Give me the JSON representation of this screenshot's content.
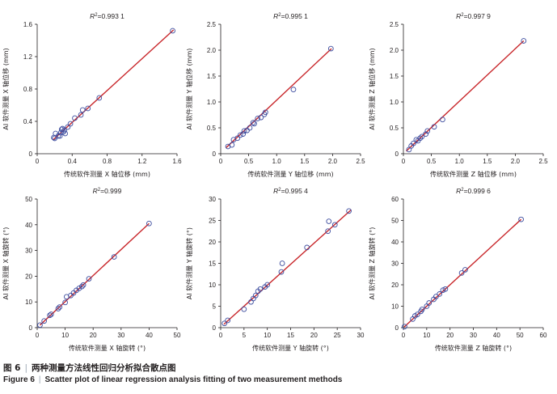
{
  "figure_label": "图 6",
  "caption_zh": "两种测量方法线性回归分析拟合散点图",
  "figure_label_en": "Figure 6",
  "caption_en": "Scatter plot of linear regression analysis fitting of two measurement methods",
  "colors": {
    "point": "#3b4b9e",
    "line": "#c8262a",
    "axis": "#231f20"
  },
  "chart_data": [
    {
      "type": "scatter",
      "r2_label": "R",
      "r2_value": "=0.993 1",
      "xlabel": "传统软件测量 X 轴位移 (mm)",
      "ylabel": "AI 软件测量 X 轴位移 (mm)",
      "xlim": [
        0,
        1.6
      ],
      "ylim": [
        0,
        1.6
      ],
      "xticks": [
        0,
        0.4,
        0.8,
        1.2,
        1.6
      ],
      "yticks": [
        0,
        0.4,
        0.8,
        1.2,
        1.6
      ],
      "xtick_labels": [
        "0",
        "0.4",
        "0.8",
        "1.2",
        "1.6"
      ],
      "ytick_labels": [
        "0",
        "0.4",
        "0.8",
        "1.2",
        "1.6"
      ],
      "fit": [
        [
          0.18,
          0.17
        ],
        [
          1.56,
          1.53
        ]
      ],
      "points": [
        [
          0.19,
          0.2
        ],
        [
          0.2,
          0.19
        ],
        [
          0.21,
          0.25
        ],
        [
          0.24,
          0.22
        ],
        [
          0.26,
          0.22
        ],
        [
          0.27,
          0.26
        ],
        [
          0.28,
          0.3
        ],
        [
          0.29,
          0.31
        ],
        [
          0.3,
          0.27
        ],
        [
          0.31,
          0.29
        ],
        [
          0.32,
          0.25
        ],
        [
          0.35,
          0.33
        ],
        [
          0.38,
          0.37
        ],
        [
          0.43,
          0.44
        ],
        [
          0.5,
          0.48
        ],
        [
          0.52,
          0.54
        ],
        [
          0.58,
          0.56
        ],
        [
          0.71,
          0.69
        ],
        [
          1.55,
          1.52
        ]
      ]
    },
    {
      "type": "scatter",
      "r2_label": "R",
      "r2_value": "=0.995 1",
      "xlabel": "传统软件测量 Y 轴位移 (mm)",
      "ylabel": "AI 软件测量 Y 轴位移 (mm)",
      "xlim": [
        0,
        2.5
      ],
      "ylim": [
        0,
        2.5
      ],
      "xticks": [
        0,
        0.5,
        1.0,
        1.5,
        2.0,
        2.5
      ],
      "yticks": [
        0,
        0.5,
        1.0,
        1.5,
        2.0,
        2.5
      ],
      "xtick_labels": [
        "0",
        "0.5",
        "1.0",
        "1.5",
        "2.0",
        "2.5"
      ],
      "ytick_labels": [
        "0",
        "0.5",
        "1.0",
        "1.5",
        "2.0",
        "2.5"
      ],
      "fit": [
        [
          0.1,
          0.12
        ],
        [
          1.98,
          2.03
        ]
      ],
      "points": [
        [
          0.13,
          0.14
        ],
        [
          0.2,
          0.17
        ],
        [
          0.23,
          0.27
        ],
        [
          0.3,
          0.3
        ],
        [
          0.35,
          0.36
        ],
        [
          0.4,
          0.38
        ],
        [
          0.42,
          0.44
        ],
        [
          0.47,
          0.45
        ],
        [
          0.52,
          0.5
        ],
        [
          0.58,
          0.6
        ],
        [
          0.6,
          0.58
        ],
        [
          0.66,
          0.68
        ],
        [
          0.72,
          0.7
        ],
        [
          0.78,
          0.76
        ],
        [
          0.8,
          0.8
        ],
        [
          1.3,
          1.24
        ],
        [
          1.97,
          2.03
        ]
      ]
    },
    {
      "type": "scatter",
      "r2_label": "R",
      "r2_value": "=0.997 9",
      "xlabel": "传统软件测量 Z 轴位移 (mm)",
      "ylabel": "AI 软件测量 Z 轴位移 (mm)",
      "xlim": [
        0,
        2.5
      ],
      "ylim": [
        0,
        2.5
      ],
      "xticks": [
        0,
        0.5,
        1.0,
        1.5,
        2.0,
        2.5
      ],
      "yticks": [
        0,
        0.5,
        1.0,
        1.5,
        2.0,
        2.5
      ],
      "xtick_labels": [
        "0",
        "0.5",
        "1.0",
        "1.5",
        "2.0",
        "2.5"
      ],
      "ytick_labels": [
        "0",
        "0.5",
        "1.0",
        "1.5",
        "2.0",
        "2.5"
      ],
      "fit": [
        [
          0.05,
          0.05
        ],
        [
          2.15,
          2.18
        ]
      ],
      "points": [
        [
          0.1,
          0.08
        ],
        [
          0.14,
          0.15
        ],
        [
          0.18,
          0.2
        ],
        [
          0.23,
          0.27
        ],
        [
          0.26,
          0.25
        ],
        [
          0.3,
          0.3
        ],
        [
          0.33,
          0.33
        ],
        [
          0.4,
          0.38
        ],
        [
          0.43,
          0.44
        ],
        [
          0.55,
          0.52
        ],
        [
          0.7,
          0.66
        ],
        [
          2.15,
          2.18
        ]
      ]
    },
    {
      "type": "scatter",
      "r2_label": "R",
      "r2_value": "=0.999",
      "xlabel": "传统软件测量 X 轴旋转 (°)",
      "ylabel": "AI 软件测量 X 轴旋转 (°)",
      "xlim": [
        0,
        50
      ],
      "ylim": [
        0,
        50
      ],
      "xticks": [
        0,
        10,
        20,
        30,
        40,
        50
      ],
      "yticks": [
        0,
        10,
        20,
        30,
        40,
        50
      ],
      "xtick_labels": [
        "0",
        "10",
        "20",
        "30",
        "40",
        "50"
      ],
      "ytick_labels": [
        "0",
        "10",
        "20",
        "30",
        "40",
        "50"
      ],
      "fit": [
        [
          1,
          1
        ],
        [
          40,
          40.5
        ]
      ],
      "points": [
        [
          1,
          1
        ],
        [
          2.5,
          2.6
        ],
        [
          4.5,
          4.8
        ],
        [
          5,
          5.2
        ],
        [
          7.5,
          7.4
        ],
        [
          8,
          8
        ],
        [
          10,
          9.8
        ],
        [
          10.5,
          12
        ],
        [
          12,
          12.5
        ],
        [
          13,
          13.5
        ],
        [
          14,
          14.5
        ],
        [
          15,
          15.3
        ],
        [
          16,
          16
        ],
        [
          16.5,
          16.6
        ],
        [
          18.5,
          19
        ],
        [
          27.5,
          27.5
        ],
        [
          40,
          40.5
        ]
      ]
    },
    {
      "type": "scatter",
      "r2_label": "R",
      "r2_value": "=0.995 4",
      "xlabel": "传统软件测量 Y 轴旋转 (°)",
      "ylabel": "AI 软件测量 Y 轴旋转 (°)",
      "xlim": [
        0,
        30
      ],
      "ylim": [
        0,
        30
      ],
      "xticks": [
        0,
        5,
        10,
        15,
        20,
        25,
        30
      ],
      "yticks": [
        0,
        5,
        10,
        15,
        20,
        25,
        30
      ],
      "xtick_labels": [
        "0",
        "5",
        "10",
        "15",
        "20",
        "25",
        "30"
      ],
      "ytick_labels": [
        "0",
        "5",
        "10",
        "15",
        "20",
        "25",
        "30"
      ],
      "fit": [
        [
          0.7,
          0.8
        ],
        [
          28,
          27.5
        ]
      ],
      "points": [
        [
          0.8,
          1
        ],
        [
          1.5,
          1.7
        ],
        [
          5,
          4.3
        ],
        [
          6.5,
          6
        ],
        [
          7,
          6.8
        ],
        [
          7.5,
          7.5
        ],
        [
          8,
          8.5
        ],
        [
          8.5,
          9
        ],
        [
          9.5,
          9.5
        ],
        [
          10,
          10
        ],
        [
          13,
          13
        ],
        [
          13.2,
          15
        ],
        [
          18.5,
          18.7
        ],
        [
          23,
          22.5
        ],
        [
          23.2,
          24.8
        ],
        [
          24.5,
          24
        ],
        [
          27.5,
          27.2
        ]
      ]
    },
    {
      "type": "scatter",
      "r2_label": "R",
      "r2_value": "=0.999 6",
      "xlabel": "传统软件测量 Z 轴旋转 (°)",
      "ylabel": "AI 软件测量 Z 轴旋转 (°)",
      "xlim": [
        0,
        60
      ],
      "ylim": [
        0,
        60
      ],
      "xticks": [
        0,
        10,
        20,
        30,
        40,
        50,
        60
      ],
      "yticks": [
        0,
        10,
        20,
        30,
        40,
        50,
        60
      ],
      "xtick_labels": [
        "0",
        "10",
        "20",
        "30",
        "40",
        "50",
        "60"
      ],
      "ytick_labels": [
        "0",
        "10",
        "20",
        "30",
        "40",
        "50",
        "60"
      ],
      "fit": [
        [
          0.3,
          0.3
        ],
        [
          50.5,
          50.5
        ]
      ],
      "points": [
        [
          0.5,
          0.5
        ],
        [
          4,
          4
        ],
        [
          5,
          5.5
        ],
        [
          6,
          6.2
        ],
        [
          7.5,
          7.6
        ],
        [
          8,
          8.5
        ],
        [
          10,
          10
        ],
        [
          11,
          11.5
        ],
        [
          13,
          13.2
        ],
        [
          14,
          14.5
        ],
        [
          15.5,
          15.7
        ],
        [
          17,
          17.5
        ],
        [
          18,
          18
        ],
        [
          25,
          25.5
        ],
        [
          26.5,
          27
        ],
        [
          50.5,
          50.5
        ]
      ]
    }
  ]
}
